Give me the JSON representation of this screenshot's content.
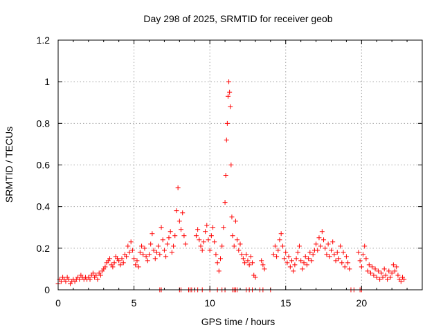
{
  "chart_data": {
    "type": "scatter",
    "title": "Day 298 of 2025, SRMTID for receiver geob",
    "xlabel": "GPS time / hours",
    "ylabel": "SRMTID / TECUs",
    "xlim": [
      0,
      24
    ],
    "ylim": [
      0,
      1.2
    ],
    "xticks": [
      0,
      5,
      10,
      15,
      20
    ],
    "yticks": [
      0,
      0.2,
      0.4,
      0.6,
      0.8,
      1,
      1.2
    ],
    "xtick_labels": [
      "0",
      "5",
      "10",
      "15",
      "20"
    ],
    "ytick_labels": [
      "0",
      "0.2",
      "0.4",
      "0.6",
      "0.8",
      "1",
      "1.2"
    ],
    "grid": true,
    "marker": "+",
    "color": "#ff0000",
    "series": [
      {
        "name": "SRMTID",
        "points": [
          [
            0.0,
            0.03
          ],
          [
            0.1,
            0.05
          ],
          [
            0.2,
            0.04
          ],
          [
            0.3,
            0.06
          ],
          [
            0.4,
            0.05
          ],
          [
            0.5,
            0.04
          ],
          [
            0.6,
            0.06
          ],
          [
            0.7,
            0.05
          ],
          [
            0.8,
            0.03
          ],
          [
            0.9,
            0.04
          ],
          [
            1.0,
            0.05
          ],
          [
            1.1,
            0.04
          ],
          [
            1.2,
            0.05
          ],
          [
            1.3,
            0.06
          ],
          [
            1.4,
            0.05
          ],
          [
            1.5,
            0.07
          ],
          [
            1.6,
            0.06
          ],
          [
            1.7,
            0.05
          ],
          [
            1.8,
            0.06
          ],
          [
            1.9,
            0.05
          ],
          [
            2.0,
            0.06
          ],
          [
            2.1,
            0.05
          ],
          [
            2.2,
            0.07
          ],
          [
            2.3,
            0.08
          ],
          [
            2.4,
            0.06
          ],
          [
            2.5,
            0.07
          ],
          [
            2.6,
            0.05
          ],
          [
            2.7,
            0.08
          ],
          [
            2.8,
            0.07
          ],
          [
            2.9,
            0.09
          ],
          [
            3.0,
            0.1
          ],
          [
            3.1,
            0.11
          ],
          [
            3.2,
            0.13
          ],
          [
            3.3,
            0.14
          ],
          [
            3.4,
            0.15
          ],
          [
            3.5,
            0.12
          ],
          [
            3.6,
            0.11
          ],
          [
            3.7,
            0.13
          ],
          [
            3.8,
            0.16
          ],
          [
            3.9,
            0.15
          ],
          [
            4.0,
            0.14
          ],
          [
            4.1,
            0.12
          ],
          [
            4.2,
            0.15
          ],
          [
            4.3,
            0.13
          ],
          [
            4.4,
            0.17
          ],
          [
            4.5,
            0.16
          ],
          [
            4.6,
            0.21
          ],
          [
            4.7,
            0.18
          ],
          [
            4.8,
            0.23
          ],
          [
            4.9,
            0.19
          ],
          [
            5.0,
            0.15
          ],
          [
            5.1,
            0.12
          ],
          [
            5.2,
            0.14
          ],
          [
            5.3,
            0.11
          ],
          [
            5.4,
            0.18
          ],
          [
            5.5,
            0.21
          ],
          [
            5.6,
            0.17
          ],
          [
            5.7,
            0.2
          ],
          [
            5.8,
            0.16
          ],
          [
            5.9,
            0.14
          ],
          [
            6.0,
            0.17
          ],
          [
            6.1,
            0.22
          ],
          [
            6.2,
            0.27
          ],
          [
            6.3,
            0.19
          ],
          [
            6.4,
            0.15
          ],
          [
            6.5,
            0.18
          ],
          [
            6.6,
            0.21
          ],
          [
            6.7,
            0.17
          ],
          [
            6.8,
            0.3
          ],
          [
            6.9,
            0.24
          ],
          [
            7.0,
            0.19
          ],
          [
            7.1,
            0.16
          ],
          [
            7.2,
            0.22
          ],
          [
            7.3,
            0.25
          ],
          [
            7.4,
            0.28
          ],
          [
            7.5,
            0.18
          ],
          [
            7.6,
            0.21
          ],
          [
            7.7,
            0.26
          ],
          [
            7.8,
            0.38
          ],
          [
            7.9,
            0.49
          ],
          [
            8.0,
            0.33
          ],
          [
            8.1,
            0.29
          ],
          [
            8.2,
            0.37
          ],
          [
            8.3,
            0.26
          ],
          [
            8.4,
            0.22
          ],
          [
            9.1,
            0.26
          ],
          [
            9.2,
            0.29
          ],
          [
            9.3,
            0.24
          ],
          [
            9.4,
            0.21
          ],
          [
            9.5,
            0.19
          ],
          [
            9.6,
            0.23
          ],
          [
            9.7,
            0.28
          ],
          [
            9.8,
            0.31
          ],
          [
            9.9,
            0.24
          ],
          [
            10.0,
            0.19
          ],
          [
            10.1,
            0.26
          ],
          [
            10.2,
            0.3
          ],
          [
            10.3,
            0.23
          ],
          [
            10.4,
            0.17
          ],
          [
            10.5,
            0.13
          ],
          [
            10.6,
            0.09
          ],
          [
            10.7,
            0.15
          ],
          [
            10.8,
            0.21
          ],
          [
            10.9,
            0.3
          ],
          [
            11.0,
            0.42
          ],
          [
            11.05,
            0.55
          ],
          [
            11.1,
            0.72
          ],
          [
            11.15,
            0.8
          ],
          [
            11.2,
            0.93
          ],
          [
            11.25,
            1.0
          ],
          [
            11.3,
            0.95
          ],
          [
            11.35,
            0.88
          ],
          [
            11.4,
            0.6
          ],
          [
            11.45,
            0.35
          ],
          [
            11.5,
            0.26
          ],
          [
            11.6,
            0.21
          ],
          [
            11.7,
            0.33
          ],
          [
            11.8,
            0.24
          ],
          [
            11.9,
            0.19
          ],
          [
            12.0,
            0.22
          ],
          [
            12.1,
            0.17
          ],
          [
            12.2,
            0.15
          ],
          [
            12.3,
            0.13
          ],
          [
            12.4,
            0.17
          ],
          [
            12.5,
            0.14
          ],
          [
            12.6,
            0.12
          ],
          [
            12.7,
            0.16
          ],
          [
            12.8,
            0.13
          ],
          [
            12.9,
            0.07
          ],
          [
            13.0,
            0.06
          ],
          [
            13.4,
            0.14
          ],
          [
            13.5,
            0.12
          ],
          [
            13.6,
            0.1
          ],
          [
            14.2,
            0.17
          ],
          [
            14.3,
            0.21
          ],
          [
            14.4,
            0.16
          ],
          [
            14.5,
            0.19
          ],
          [
            14.6,
            0.24
          ],
          [
            14.7,
            0.27
          ],
          [
            14.8,
            0.21
          ],
          [
            14.9,
            0.15
          ],
          [
            15.0,
            0.18
          ],
          [
            15.1,
            0.13
          ],
          [
            15.2,
            0.16
          ],
          [
            15.3,
            0.11
          ],
          [
            15.4,
            0.14
          ],
          [
            15.5,
            0.09
          ],
          [
            15.6,
            0.12
          ],
          [
            15.7,
            0.15
          ],
          [
            15.8,
            0.18
          ],
          [
            15.9,
            0.21
          ],
          [
            16.0,
            0.14
          ],
          [
            16.1,
            0.1
          ],
          [
            16.2,
            0.13
          ],
          [
            16.3,
            0.16
          ],
          [
            16.4,
            0.12
          ],
          [
            16.5,
            0.15
          ],
          [
            16.6,
            0.18
          ],
          [
            16.7,
            0.14
          ],
          [
            16.8,
            0.17
          ],
          [
            16.9,
            0.19
          ],
          [
            17.0,
            0.22
          ],
          [
            17.1,
            0.19
          ],
          [
            17.2,
            0.25
          ],
          [
            17.3,
            0.21
          ],
          [
            17.4,
            0.28
          ],
          [
            17.5,
            0.24
          ],
          [
            17.6,
            0.2
          ],
          [
            17.7,
            0.17
          ],
          [
            17.8,
            0.22
          ],
          [
            17.9,
            0.16
          ],
          [
            18.0,
            0.19
          ],
          [
            18.1,
            0.23
          ],
          [
            18.2,
            0.17
          ],
          [
            18.3,
            0.14
          ],
          [
            18.4,
            0.18
          ],
          [
            18.5,
            0.15
          ],
          [
            18.6,
            0.21
          ],
          [
            18.7,
            0.13
          ],
          [
            18.8,
            0.18
          ],
          [
            18.9,
            0.11
          ],
          [
            19.0,
            0.16
          ],
          [
            19.1,
            0.13
          ],
          [
            19.2,
            0.1
          ],
          [
            19.8,
            0.18
          ],
          [
            19.9,
            0.14
          ],
          [
            20.0,
            0.11
          ],
          [
            20.1,
            0.17
          ],
          [
            20.2,
            0.21
          ],
          [
            20.3,
            0.15
          ],
          [
            20.4,
            0.09
          ],
          [
            20.5,
            0.12
          ],
          [
            20.6,
            0.08
          ],
          [
            20.7,
            0.11
          ],
          [
            20.8,
            0.07
          ],
          [
            20.9,
            0.1
          ],
          [
            21.0,
            0.06
          ],
          [
            21.1,
            0.09
          ],
          [
            21.2,
            0.05
          ],
          [
            21.3,
            0.08
          ],
          [
            21.4,
            0.06
          ],
          [
            21.5,
            0.1
          ],
          [
            21.6,
            0.07
          ],
          [
            21.7,
            0.05
          ],
          [
            21.8,
            0.09
          ],
          [
            21.9,
            0.06
          ],
          [
            22.0,
            0.08
          ],
          [
            22.1,
            0.12
          ],
          [
            22.2,
            0.09
          ],
          [
            22.3,
            0.11
          ],
          [
            22.4,
            0.07
          ],
          [
            22.5,
            0.05
          ],
          [
            22.6,
            0.04
          ],
          [
            22.7,
            0.06
          ],
          [
            22.8,
            0.05
          ],
          [
            6.7,
            0.0
          ],
          [
            6.8,
            0.0
          ],
          [
            8.0,
            0.0
          ],
          [
            8.1,
            0.0
          ],
          [
            8.6,
            0.0
          ],
          [
            8.7,
            0.0
          ],
          [
            8.8,
            0.0
          ],
          [
            9.0,
            0.0
          ],
          [
            9.2,
            0.0
          ],
          [
            9.5,
            0.0
          ],
          [
            10.0,
            0.0
          ],
          [
            10.5,
            0.0
          ],
          [
            10.8,
            0.0
          ],
          [
            11.0,
            0.0
          ],
          [
            11.5,
            0.0
          ],
          [
            11.6,
            0.0
          ],
          [
            11.7,
            0.0
          ],
          [
            11.8,
            0.0
          ],
          [
            12.4,
            0.0
          ],
          [
            12.6,
            0.0
          ],
          [
            12.8,
            0.0
          ],
          [
            13.3,
            0.0
          ],
          [
            13.5,
            0.0
          ],
          [
            14.0,
            0.0
          ],
          [
            19.3,
            0.0
          ],
          [
            19.5,
            0.0
          ],
          [
            19.9,
            0.0
          ],
          [
            20.0,
            0.0
          ]
        ]
      }
    ]
  }
}
